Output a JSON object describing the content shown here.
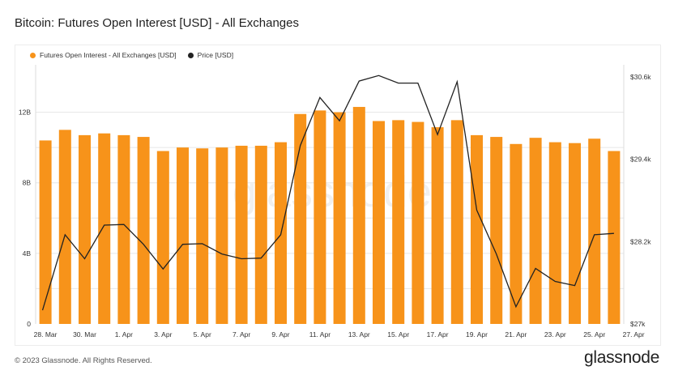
{
  "page": {
    "title": "Bitcoin: Futures Open Interest [USD] - All Exchanges",
    "copyright": "© 2023 Glassnode. All Rights Reserved.",
    "brand": "glassnode",
    "watermark": "glassnode"
  },
  "colors": {
    "bar": "#F7931A",
    "price_line": "#222222",
    "grid": "#e6e6e6",
    "axis_text": "#333333"
  },
  "chart_data": {
    "type": "bar",
    "title": "Bitcoin: Futures Open Interest [USD] - All Exchanges",
    "grid": true,
    "legend_placement": "top-left",
    "x": [
      "28. Mar",
      "29. Mar",
      "30. Mar",
      "31. Mar",
      "1. Apr",
      "2. Apr",
      "3. Apr",
      "4. Apr",
      "5. Apr",
      "6. Apr",
      "7. Apr",
      "8. Apr",
      "9. Apr",
      "10. Apr",
      "11. Apr",
      "12. Apr",
      "13. Apr",
      "14. Apr",
      "15. Apr",
      "16. Apr",
      "17. Apr",
      "18. Apr",
      "19. Apr",
      "20. Apr",
      "21. Apr",
      "22. Apr",
      "23. Apr",
      "24. Apr",
      "25. Apr",
      "26. Apr"
    ],
    "x_ticks": [
      "28. Mar",
      "30. Mar",
      "1. Apr",
      "3. Apr",
      "5. Apr",
      "7. Apr",
      "9. Apr",
      "11. Apr",
      "13. Apr",
      "15. Apr",
      "17. Apr",
      "19. Apr",
      "21. Apr",
      "23. Apr",
      "25. Apr",
      "27. Apr"
    ],
    "y_left": {
      "ticks": [
        "0",
        "4B",
        "8B",
        "12B"
      ],
      "tick_values": [
        0,
        4,
        8,
        12
      ],
      "ylim": [
        0,
        14
      ]
    },
    "y_right": {
      "ticks": [
        "$27k",
        "$28.2k",
        "$29.4k",
        "$30.6k"
      ],
      "tick_values": [
        27000,
        28200,
        29400,
        30600
      ],
      "ylim": [
        27000,
        30600
      ]
    },
    "series": [
      {
        "name": "Futures Open Interest - All Exchanges [USD]",
        "axis": "left",
        "type": "bar",
        "values": [
          10.4,
          11.0,
          10.7,
          10.8,
          10.7,
          10.6,
          9.8,
          10.0,
          9.95,
          10.0,
          10.1,
          10.1,
          10.3,
          11.9,
          12.1,
          12.0,
          12.3,
          11.5,
          11.55,
          11.45,
          11.15,
          11.55,
          10.7,
          10.6,
          10.2,
          10.55,
          10.3,
          10.25,
          10.5,
          9.8
        ]
      },
      {
        "name": "Price [USD]",
        "axis": "right",
        "type": "line",
        "x_start_index": -0.15,
        "values": [
          27200,
          28300,
          27950,
          28440,
          28450,
          28160,
          27800,
          28160,
          28170,
          28020,
          27950,
          27960,
          28300,
          29600,
          30300,
          29960,
          30540,
          30620,
          30510,
          30510,
          29760,
          30530,
          28660,
          28020,
          27250,
          27810,
          27620,
          27560,
          28300,
          28320
        ]
      }
    ]
  }
}
